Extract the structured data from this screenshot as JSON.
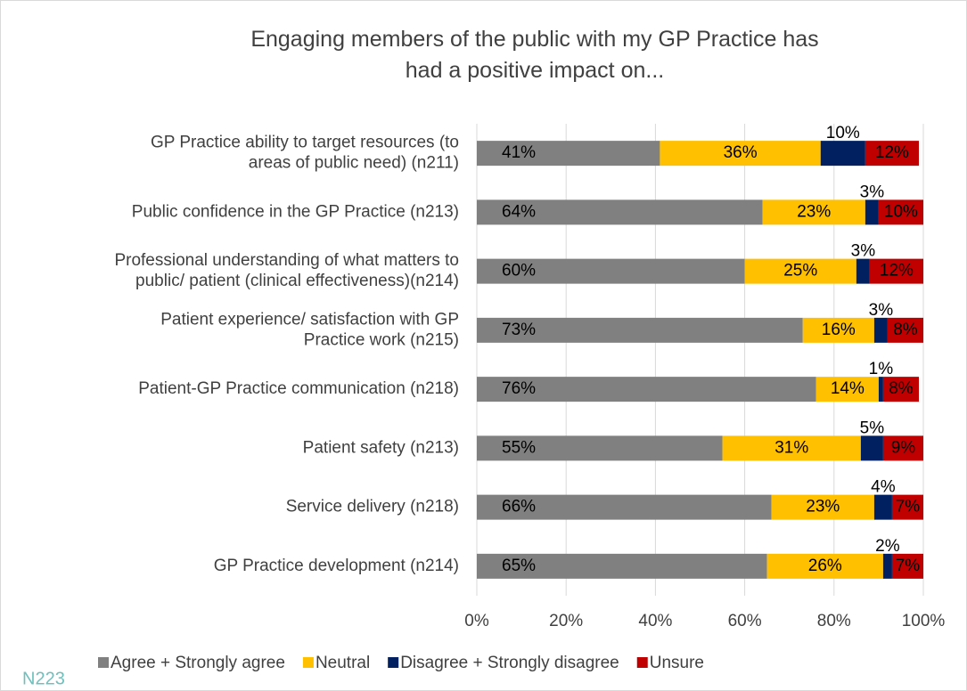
{
  "chart_data": {
    "type": "stacked_bar_horizontal",
    "title": "Engaging members of the public with my GP Practice has\nhad a positive impact on...",
    "categories": [
      "GP Practice ability to target resources (to\nareas of public need) (n211)",
      "Public confidence in the GP Practice (n213)",
      "Professional understanding of what matters to\npublic/ patient (clinical effectiveness)(n214)",
      "Patient experience/ satisfaction with GP\nPractice work (n215)",
      "Patient-GP Practice communication (n218)",
      "Patient safety (n213)",
      "Service delivery (n218)",
      "GP Practice development (n214)"
    ],
    "series": [
      {
        "name": "Agree + Strongly agree",
        "color": "#808080",
        "values": [
          41,
          64,
          60,
          73,
          76,
          55,
          66,
          65
        ]
      },
      {
        "name": "Neutral",
        "color": "#ffc000",
        "values": [
          36,
          23,
          25,
          16,
          14,
          31,
          23,
          26
        ]
      },
      {
        "name": "Disagree + Strongly disagree",
        "color": "#002060",
        "values": [
          10,
          3,
          3,
          3,
          1,
          5,
          4,
          2
        ]
      },
      {
        "name": "Unsure",
        "color": "#c00000",
        "values": [
          12,
          10,
          12,
          8,
          8,
          9,
          7,
          7
        ]
      }
    ],
    "value_labels": [
      [
        "41%",
        "64%",
        "60%",
        "73%",
        "76%",
        "55%",
        "66%",
        "65%"
      ],
      [
        "36%",
        "23%",
        "25%",
        "16%",
        "14%",
        "31%",
        "23%",
        "26%"
      ],
      [
        "10%",
        "3%",
        "3%",
        "3%",
        "1%",
        "5%",
        "4%",
        "2%"
      ],
      [
        "12%",
        "10%",
        "12%",
        "8%",
        "8%",
        "9%",
        "7%",
        "7%"
      ]
    ],
    "xlim": [
      0,
      100
    ],
    "xticks": [
      {
        "value": 0,
        "label": "0%"
      },
      {
        "value": 20,
        "label": "20%"
      },
      {
        "value": 40,
        "label": "40%"
      },
      {
        "value": 60,
        "label": "60%"
      },
      {
        "value": 80,
        "label": "80%"
      },
      {
        "value": 100,
        "label": "100%"
      }
    ],
    "grid": true,
    "legend": "bottom",
    "note": "N223"
  }
}
